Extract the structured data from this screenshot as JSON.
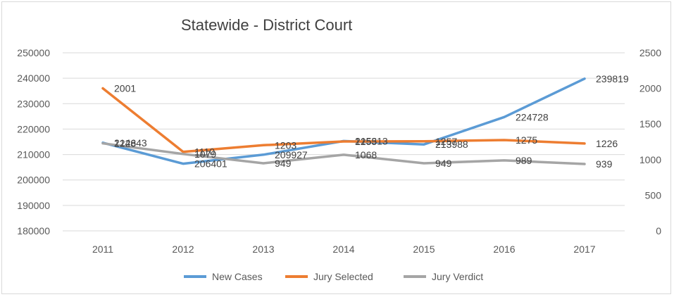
{
  "chart_data": {
    "type": "line",
    "title": "Statewide - District Court",
    "categories": [
      "2011",
      "2012",
      "2013",
      "2014",
      "2015",
      "2016",
      "2017"
    ],
    "y_left": {
      "min": 180000,
      "max": 250000,
      "ticks": [
        "180000",
        "190000",
        "200000",
        "210000",
        "220000",
        "230000",
        "240000",
        "250000"
      ]
    },
    "y_right": {
      "min": 0,
      "max": 2500,
      "ticks": [
        "0",
        "500",
        "1000",
        "1500",
        "2000",
        "2500"
      ]
    },
    "series": [
      {
        "name": "New Cases",
        "axis": "left",
        "color": "#5B9BD5",
        "values": [
          214643,
          206401,
          209927,
          215313,
          213988,
          224728,
          239819
        ],
        "labels": [
          "214643",
          "206401",
          "209927",
          "215313",
          "213988",
          "224728",
          "239819"
        ]
      },
      {
        "name": "Jury Selected",
        "axis": "right",
        "color": "#ED7D31",
        "values": [
          2001,
          1110,
          1203,
          1255,
          1257,
          1275,
          1226
        ],
        "labels": [
          "2001",
          "1110",
          "1203",
          "1255",
          "1257",
          "1275",
          "1226"
        ]
      },
      {
        "name": "Jury Verdict",
        "axis": "right",
        "color": "#A5A5A5",
        "values": [
          1228,
          1079,
          949,
          1068,
          949,
          989,
          939
        ],
        "labels": [
          "1228",
          "1079",
          "949",
          "1068",
          "949",
          "989",
          "939"
        ]
      }
    ],
    "legend_position": "bottom"
  }
}
